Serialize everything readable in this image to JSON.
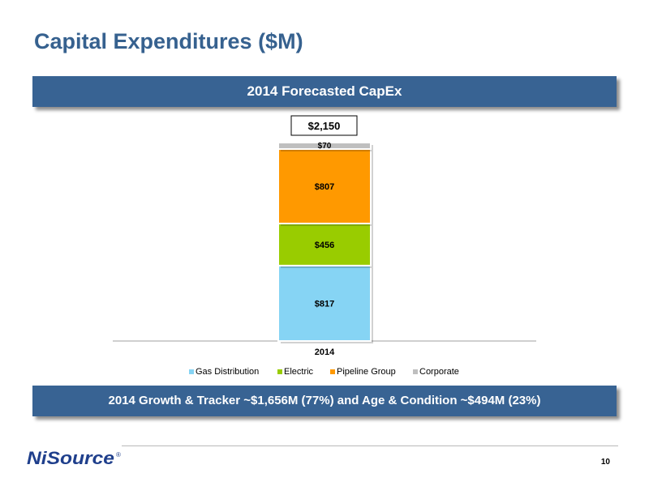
{
  "slide": {
    "title": "Capital Expenditures ($M)",
    "page_number": "10"
  },
  "banners": {
    "top": "2014 Forecasted CapEx",
    "bottom": "2014 Growth & Tracker ~$1,656M (77%) and Age & Condition ~$494M (23%)"
  },
  "logo": {
    "text": "NiSource",
    "registered_mark": "®",
    "color": "#1f3f8c"
  },
  "chart_data": {
    "type": "bar",
    "stacked": true,
    "categories": [
      "2014"
    ],
    "series": [
      {
        "name": "Gas Distribution",
        "values": [
          817
        ],
        "labels": [
          "$817"
        ],
        "color": "#86d4f4"
      },
      {
        "name": "Electric",
        "values": [
          456
        ],
        "labels": [
          "$456"
        ],
        "color": "#99cc00"
      },
      {
        "name": "Pipeline Group",
        "values": [
          807
        ],
        "labels": [
          "$807"
        ],
        "color": "#ff9900"
      },
      {
        "name": "Corporate",
        "values": [
          70
        ],
        "labels": [
          "$70"
        ],
        "color": "#bfbfbf"
      }
    ],
    "totals": [
      "$2,150"
    ],
    "legend_position": "bottom",
    "grid": false
  }
}
